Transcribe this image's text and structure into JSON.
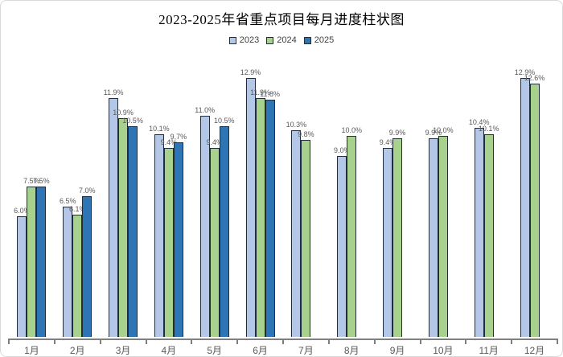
{
  "colors": {
    "background": "#ffffff",
    "card_border": "#d9d9d9",
    "title_color": "#000000",
    "bar_border": "#1f2d3d",
    "axis_color": "#7f7f7f",
    "label_color": "#595959",
    "series_2023": "#b4c7e7",
    "series_2024": "#a9d18e",
    "series_2025": "#2e75b6"
  },
  "chart_data": {
    "type": "bar",
    "title": "2023-2025年省重点项目每月进度柱状图",
    "categories": [
      "1月",
      "2月",
      "3月",
      "4月",
      "5月",
      "6月",
      "7月",
      "8月",
      "9月",
      "10月",
      "11月",
      "12月"
    ],
    "series": [
      {
        "name": "2023",
        "color": "#b4c7e7",
        "values": [
          6.0,
          6.5,
          11.9,
          10.1,
          11.0,
          12.9,
          10.3,
          9.0,
          9.4,
          9.9,
          10.4,
          12.9
        ]
      },
      {
        "name": "2024",
        "color": "#a9d18e",
        "values": [
          7.5,
          6.1,
          10.9,
          9.4,
          9.4,
          11.9,
          9.8,
          10.0,
          9.9,
          10.0,
          10.1,
          12.6
        ]
      },
      {
        "name": "2025",
        "color": "#2e75b6",
        "values": [
          7.5,
          7.0,
          10.5,
          9.7,
          10.5,
          11.8,
          null,
          null,
          null,
          null,
          null,
          null
        ]
      }
    ],
    "value_suffix": "%",
    "value_decimals": 1,
    "data_labels": true,
    "ylim": [
      0,
      13.7
    ],
    "grid": false,
    "legend_position": "top",
    "xlabel": "",
    "ylabel": ""
  }
}
